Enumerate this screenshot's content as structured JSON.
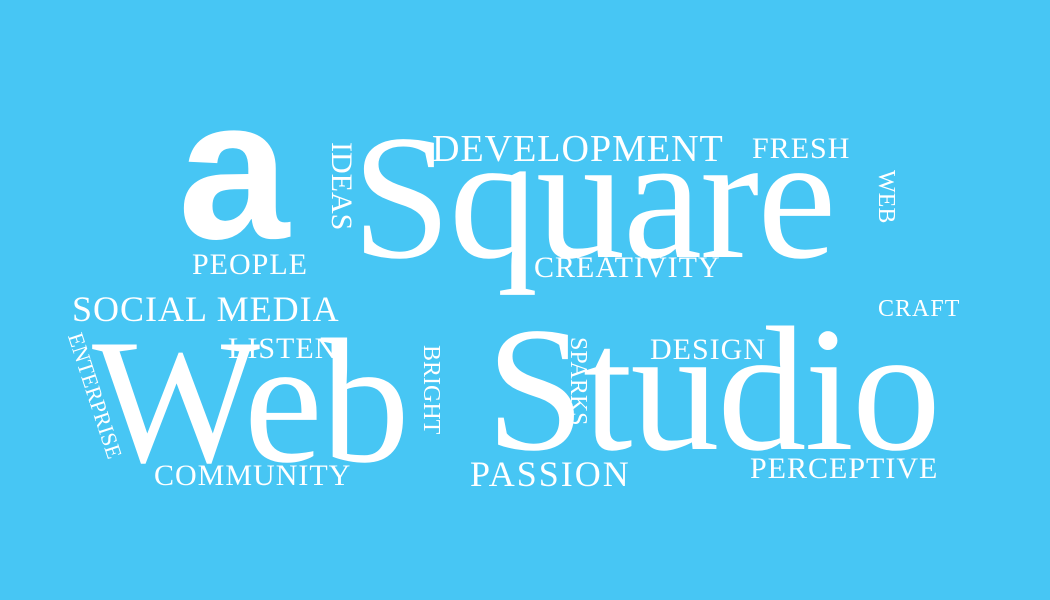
{
  "colors": {
    "background": "#47C6F4",
    "text": "#FFFFFF"
  },
  "logo": {
    "letter": "a",
    "word_main": "Square",
    "word_web": "Web",
    "word_studio": "Studio"
  },
  "words": {
    "development": "DEVELOPMENT",
    "fresh": "FRESH",
    "ideas": "IDEAS",
    "web": "WEB",
    "people": "PEOPLE",
    "creativity": "CREATIVITY",
    "social_media": "SOCIAL MEDIA",
    "craft": "CRAFT",
    "listen": "LISTEN",
    "enterprise": "ENTERPRISE",
    "bright": "BRIGHT",
    "sparks": "SPARKS",
    "design": "DESIGN",
    "community": "COMMUNITY",
    "passion": "PASSION",
    "perceptive": "PERCEPTIVE"
  }
}
